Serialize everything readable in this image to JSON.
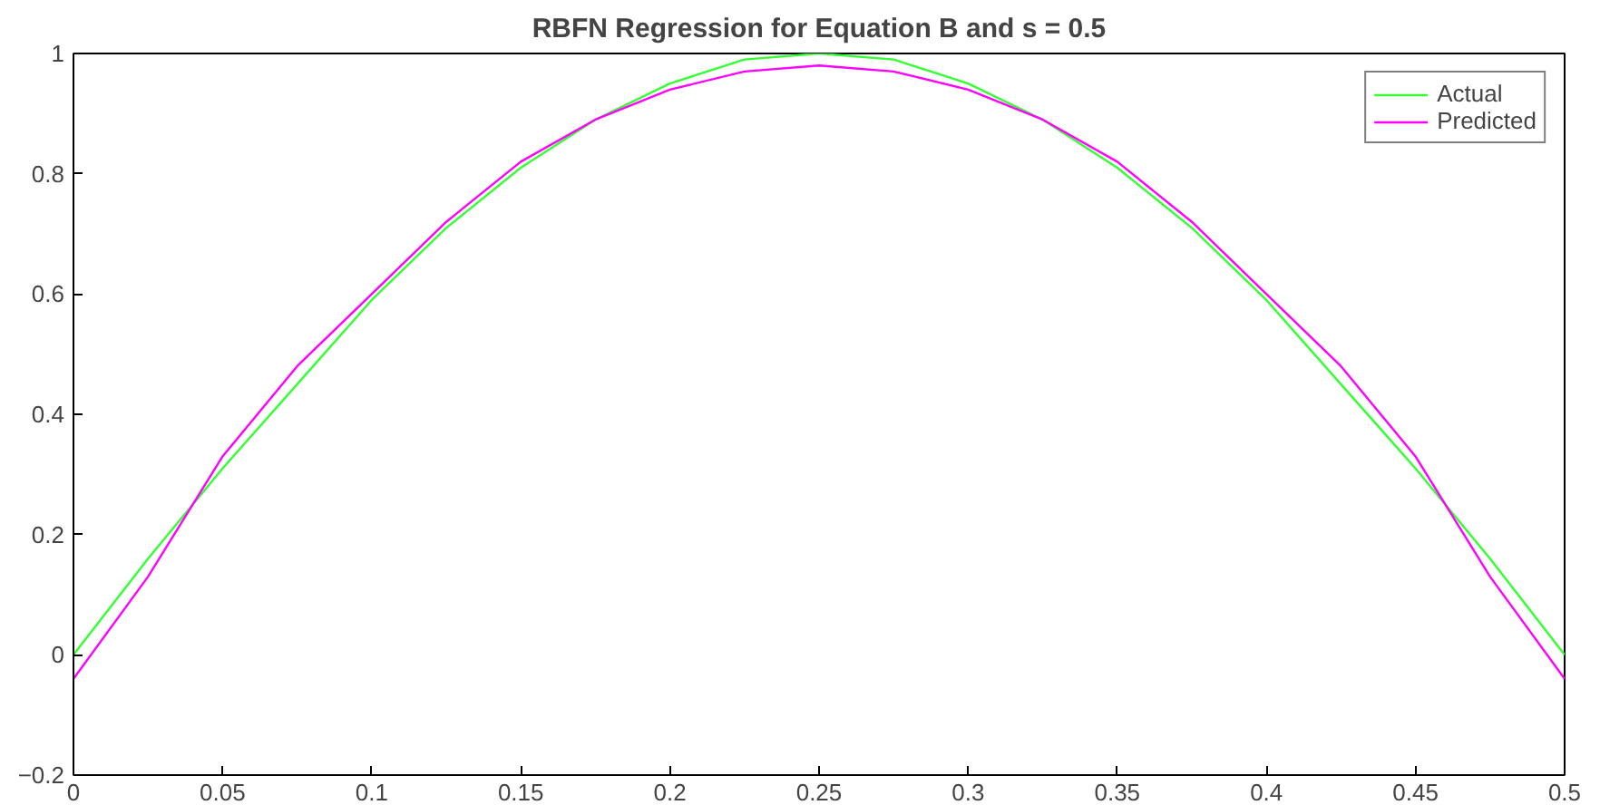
{
  "chart_data": {
    "type": "line",
    "title": "RBFN Regression for Equation B and s = 0.5",
    "x": [
      0,
      0.025,
      0.05,
      0.075,
      0.1,
      0.125,
      0.15,
      0.175,
      0.2,
      0.225,
      0.25,
      0.275,
      0.3,
      0.325,
      0.35,
      0.375,
      0.4,
      0.425,
      0.45,
      0.475,
      0.5
    ],
    "series": [
      {
        "name": "Actual",
        "color": "#33ff33",
        "values": [
          0,
          0.16,
          0.31,
          0.45,
          0.59,
          0.71,
          0.81,
          0.89,
          0.95,
          0.99,
          1.0,
          0.99,
          0.95,
          0.89,
          0.81,
          0.71,
          0.59,
          0.45,
          0.31,
          0.16,
          0
        ]
      },
      {
        "name": "Predicted",
        "color": "#ff00ff",
        "values": [
          -0.04,
          0.13,
          0.33,
          0.48,
          0.6,
          0.72,
          0.82,
          0.89,
          0.94,
          0.97,
          0.98,
          0.97,
          0.94,
          0.89,
          0.82,
          0.72,
          0.6,
          0.48,
          0.33,
          0.13,
          -0.04
        ]
      }
    ],
    "xlim": [
      0,
      0.5
    ],
    "xticks": [
      0,
      0.05,
      0.1,
      0.15,
      0.2,
      0.25,
      0.3,
      0.35,
      0.4,
      0.45,
      0.5
    ],
    "ylim": [
      -0.2,
      1
    ],
    "yticks": [
      -0.2,
      0,
      0.2,
      0.4,
      0.6,
      0.8,
      1
    ],
    "grid": false,
    "legend": "top right",
    "marker": "none",
    "line_style": "solid"
  }
}
